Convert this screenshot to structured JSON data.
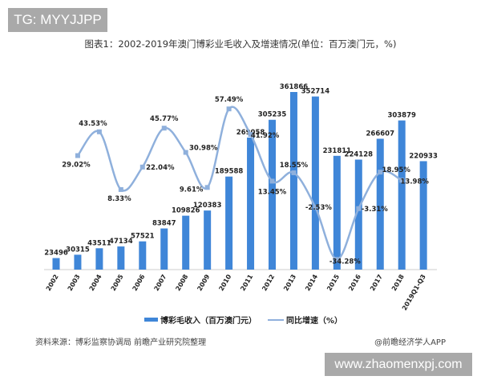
{
  "tag": "TG: MYYJJPP",
  "watermark": "www.zhaomenxpj.com",
  "source": "资料来源：博彩监察协调局 前瞻产业研究院整理",
  "app": "@前瞻经济学人APP",
  "chart_data": {
    "type": "bar",
    "title": "图表1：2002-2019年澳门博彩业毛收入及增速情况(单位：百万澳门元，%)",
    "categories": [
      "2002",
      "2003",
      "2004",
      "2005",
      "2006",
      "2007",
      "2008",
      "2009",
      "2010",
      "2011",
      "2012",
      "2013",
      "2014",
      "2015",
      "2016",
      "2017",
      "2018",
      "2019Q1-Q3"
    ],
    "series": [
      {
        "name": "博彩毛收入（百万澳门元）",
        "type": "bar",
        "color": "#3f86d8",
        "values": [
          23496,
          30315,
          43511,
          47134,
          57521,
          83847,
          109826,
          120383,
          189588,
          269058,
          305235,
          361866,
          352714,
          231811,
          224128,
          266607,
          303879,
          220933
        ]
      },
      {
        "name": "同比增速（%）",
        "type": "line",
        "color": "#8fb0dc",
        "values": [
          null,
          29.02,
          43.53,
          8.33,
          22.04,
          45.77,
          30.98,
          9.61,
          57.49,
          41.92,
          13.45,
          18.55,
          -2.53,
          -34.28,
          -3.31,
          18.95,
          13.98,
          null
        ],
        "labels": [
          "",
          "29.02%",
          "43.53%",
          "8.33%",
          "22.04%",
          "45.77%",
          "30.98%",
          "9.61%",
          "57.49%",
          "41.92%",
          "13.45%",
          "18.55%",
          "-2.53%",
          "-34.28%",
          "-3.31%",
          "18.95%",
          "13.98%",
          ""
        ]
      }
    ]
  }
}
